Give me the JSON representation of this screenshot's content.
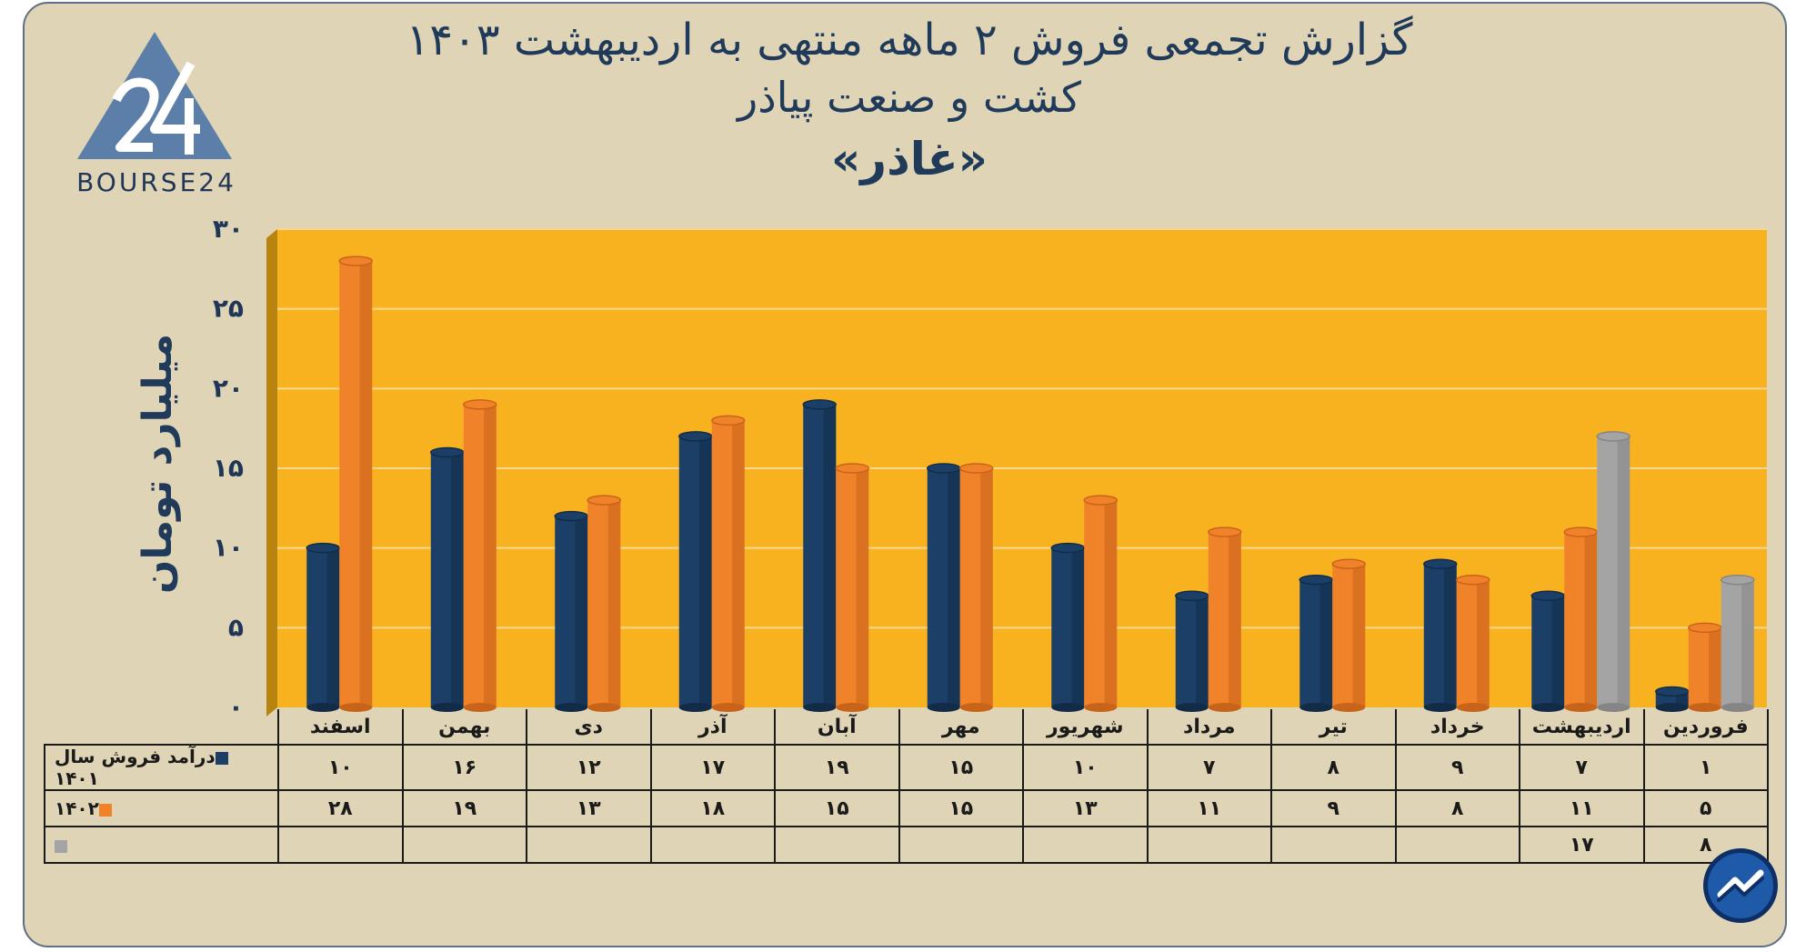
{
  "title": {
    "line1": "گزارش تجمعی فروش ۲ ماهه منتهی به اردیبهشت ۱۴۰۳",
    "line2": "کشت و صنعت پیاذر",
    "line3": "«غاذر»"
  },
  "logo": {
    "text": "BOURSE24",
    "mark": "24"
  },
  "colors": {
    "frame_bg": "#e0d4b6",
    "plot_bg": "#f9b21f",
    "series_1401": "#1b3f66",
    "series_1402": "#f0822a",
    "series_1403": "#a4a4a4",
    "title": "#203a5a"
  },
  "chart_data": {
    "type": "bar",
    "ylabel": "میلیارد تومان",
    "ylim": [
      0,
      30
    ],
    "yticks": [
      0,
      5,
      10,
      15,
      20,
      25,
      30
    ],
    "ytick_labels": [
      "۰",
      "۵",
      "۱۰",
      "۱۵",
      "۲۰",
      "۲۵",
      "۳۰"
    ],
    "grid": true,
    "categories": [
      "اسفند",
      "بهمن",
      "دی",
      "آذر",
      "آبان",
      "مهر",
      "شهریور",
      "مرداد",
      "تیر",
      "خرداد",
      "اردیبهشت",
      "فروردین"
    ],
    "series": [
      {
        "name": "درآمد فروش سال ۱۴۰۱",
        "values": [
          10,
          16,
          12,
          17,
          19,
          15,
          10,
          7,
          8,
          9,
          7,
          1
        ],
        "labels": [
          "۱۰",
          "۱۶",
          "۱۲",
          "۱۷",
          "۱۹",
          "۱۵",
          "۱۰",
          "۷",
          "۸",
          "۹",
          "۷",
          "۱"
        ]
      },
      {
        "name": "۱۴۰۲",
        "values": [
          28,
          19,
          13,
          18,
          15,
          15,
          13,
          11,
          9,
          8,
          11,
          5
        ],
        "labels": [
          "۲۸",
          "۱۹",
          "۱۳",
          "۱۸",
          "۱۵",
          "۱۵",
          "۱۳",
          "۱۱",
          "۹",
          "۸",
          "۱۱",
          "۵"
        ]
      },
      {
        "name": "",
        "values": [
          null,
          null,
          null,
          null,
          null,
          null,
          null,
          null,
          null,
          null,
          17,
          8
        ],
        "labels": [
          "",
          "",
          "",
          "",
          "",
          "",
          "",
          "",
          "",
          "",
          "۱۷",
          "۸"
        ]
      }
    ]
  }
}
